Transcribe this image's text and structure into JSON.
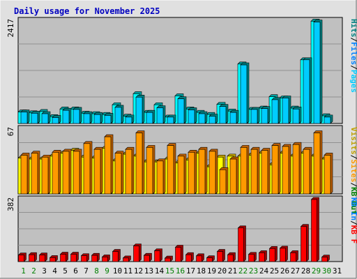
{
  "title": "Daily usage for November 2025",
  "colors": {
    "background": "#e0e0e0",
    "plot": "#c0c0c0",
    "grid": "#909090",
    "title": "#0000c0",
    "pages_front": "#00ccff",
    "pages_back": "#008080",
    "hits_front": "#00ffff",
    "hits_back": "#00a0a0",
    "visits_front": "#ffff00",
    "visits_back": "#c0a000",
    "sites_front": "#ff9900",
    "sites_back": "#c06000",
    "kb_front": "#ff0000",
    "kb_back": "#a00000",
    "weekend_label": "#008000",
    "weekday_label": "#000000"
  },
  "chart_data": {
    "type": "bar",
    "categories": [
      "1",
      "2",
      "3",
      "4",
      "5",
      "6",
      "7",
      "8",
      "9",
      "10",
      "11",
      "12",
      "13",
      "14",
      "15",
      "16",
      "17",
      "18",
      "19",
      "20",
      "21",
      "22",
      "23",
      "24",
      "25",
      "26",
      "27",
      "28",
      "29",
      "30",
      "31"
    ],
    "weekend_days": [
      1,
      2,
      8,
      9,
      15,
      16,
      22,
      23,
      29,
      30
    ],
    "panels": [
      {
        "name": "hits-files-pages",
        "max_label": "2417",
        "ymax": 2417,
        "legend": [
          {
            "text": "Hits",
            "color": "#008080"
          },
          {
            "text": "/",
            "color": "#000000"
          },
          {
            "text": "Files",
            "color": "#0080ff"
          },
          {
            "text": "/",
            "color": "#000000"
          },
          {
            "text": "Pages",
            "color": "#00ccff"
          }
        ],
        "series": [
          {
            "name": "Hits",
            "values": [
              270,
              250,
              280,
              160,
              340,
              340,
              240,
              230,
              210,
              440,
              170,
              700,
              260,
              440,
              150,
              650,
              340,
              260,
              210,
              450,
              290,
              1400,
              330,
              360,
              630,
              600,
              360,
              1500,
              2410,
              180,
              null
            ]
          },
          {
            "name": "Pages",
            "values": [
              270,
              240,
              230,
              140,
              310,
              330,
              230,
              210,
              190,
              380,
              150,
              620,
              260,
              370,
              150,
              580,
              320,
              230,
              170,
              400,
              260,
              1380,
              330,
              350,
              560,
              600,
              340,
              1500,
              2390,
              150,
              null
            ]
          }
        ]
      },
      {
        "name": "visits-sites",
        "max_label": "67",
        "ymax": 67,
        "legend": [
          {
            "text": "Visits",
            "color": "#c0a000"
          },
          {
            "text": "/",
            "color": "#000000"
          },
          {
            "text": "Sites",
            "color": "#ff9900"
          },
          {
            "text": "/",
            "color": "#000000"
          },
          {
            "text": "KB Out",
            "color": "#008000"
          }
        ],
        "series": [
          {
            "name": "Visits",
            "values": [
              37,
              36,
              36,
              39,
              42,
              45,
              38,
              37,
              47,
              34,
              41,
              39,
              33,
              33,
              36,
              32,
              35,
              42,
              28,
              38,
              39,
              39,
              40,
              42,
              30,
              42,
              39,
              42,
              39,
              36,
              null
            ]
          },
          {
            "name": "Sites",
            "values": [
              40,
              42,
              38,
              43,
              44,
              44,
              52,
              46,
              59,
              42,
              46,
              63,
              48,
              34,
              50,
              39,
              43,
              46,
              44,
              25,
              36,
              48,
              46,
              45,
              50,
              49,
              51,
              46,
              63,
              40,
              null
            ]
          }
        ]
      },
      {
        "name": "kbin-kbf",
        "max_label": "382",
        "ymax": 382,
        "legend": [
          {
            "text": "KB In",
            "color": "#0080ff"
          },
          {
            "text": "/",
            "color": "#000000"
          },
          {
            "text": "KB F",
            "color": "#ff0000"
          }
        ],
        "series": [
          {
            "name": "KB F",
            "values": [
              40,
              42,
              40,
              24,
              45,
              45,
              36,
              38,
              28,
              62,
              22,
              96,
              38,
              66,
              21,
              88,
              42,
              35,
              23,
              62,
              42,
              207,
              44,
              54,
              80,
              82,
              54,
              216,
              382,
              27,
              null
            ]
          }
        ]
      }
    ]
  }
}
